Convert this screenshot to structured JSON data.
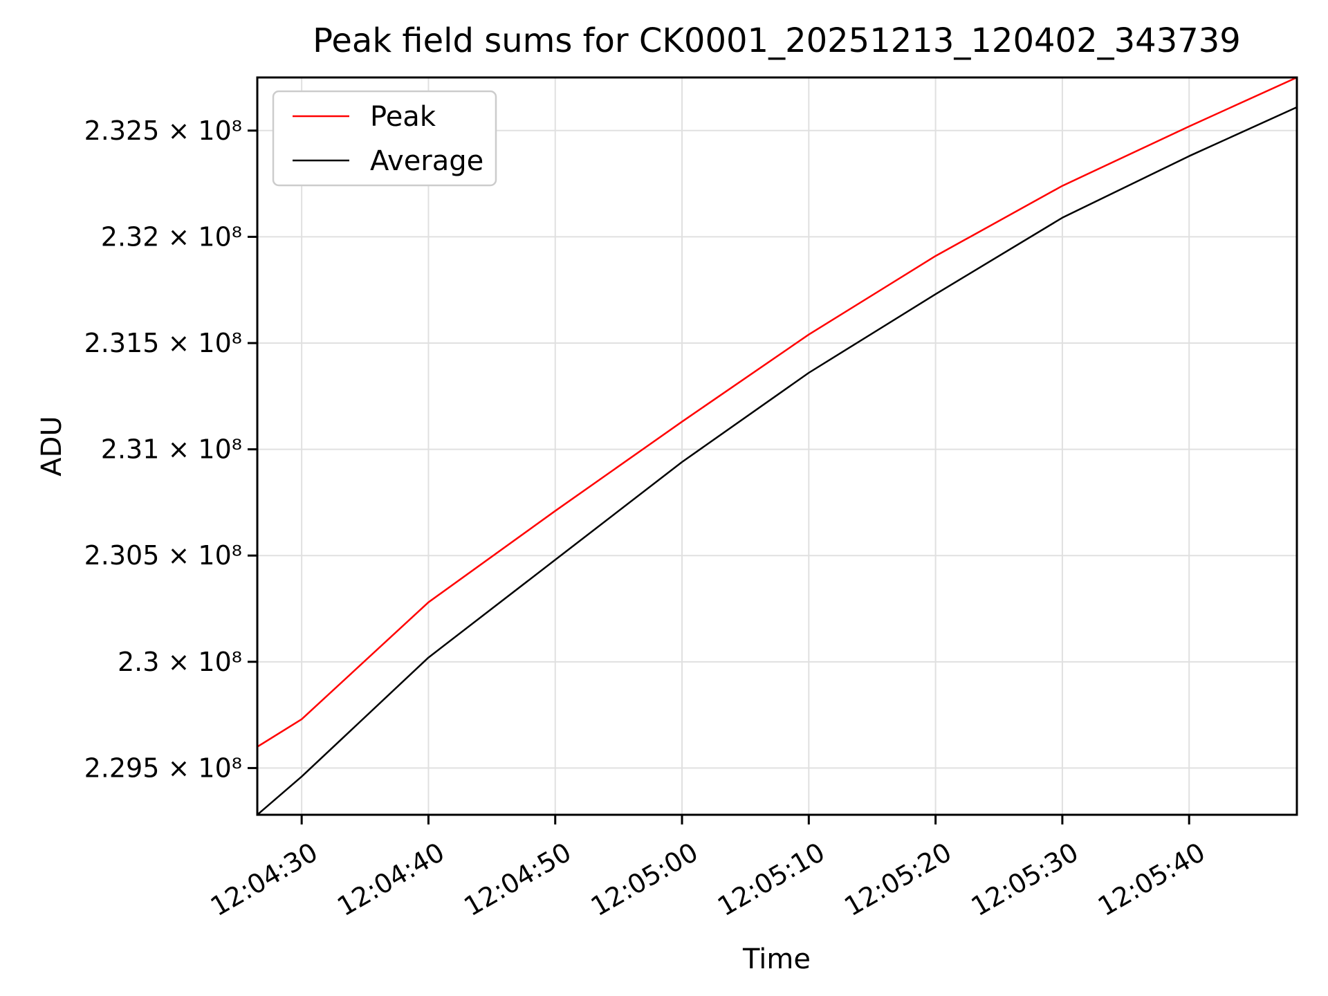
{
  "chart_data": {
    "type": "line",
    "title": "Peak field sums for CK0001_20251213_120402_343739",
    "xlabel": "Time",
    "ylabel": "ADU",
    "y_scale": "log",
    "grid": true,
    "legend_position": "upper left",
    "xlim": [
      "12:04:26.5",
      "12:05:48.5"
    ],
    "ylim": [
      229280000,
      232750000
    ],
    "x_tick_labels": [
      "12:04:30",
      "12:04:40",
      "12:04:50",
      "12:05:00",
      "12:05:10",
      "12:05:20",
      "12:05:30",
      "12:05:40"
    ],
    "y_ticks": [
      {
        "value": 232500000,
        "label": "2.325 × 10⁸"
      },
      {
        "value": 232000000,
        "label": "2.32 × 10⁸"
      },
      {
        "value": 231500000,
        "label": "2.315 × 10⁸"
      },
      {
        "value": 231000000,
        "label": "2.31 × 10⁸"
      },
      {
        "value": 230500000,
        "label": "2.305 × 10⁸"
      },
      {
        "value": 230000000,
        "label": "2.3 × 10⁸"
      },
      {
        "value": 229500000,
        "label": "2.295 × 10⁸"
      }
    ],
    "x": [
      "12:04:26.5",
      "12:04:30",
      "12:04:40",
      "12:04:50",
      "12:05:00",
      "12:05:10",
      "12:05:20",
      "12:05:30",
      "12:05:40",
      "12:05:48.5"
    ],
    "series": [
      {
        "name": "Peak",
        "color": "#ff0000",
        "values": [
          229600000,
          229730000,
          230280000,
          230710000,
          231130000,
          231540000,
          231910000,
          232240000,
          232520000,
          232750000
        ]
      },
      {
        "name": "Average",
        "color": "#000000",
        "values": [
          229280000,
          229460000,
          230020000,
          230480000,
          230940000,
          231360000,
          231730000,
          232090000,
          232380000,
          232610000
        ]
      }
    ],
    "colors": {
      "grid": "#e0e0e0",
      "spine": "#000000",
      "legend_border": "#cccccc",
      "background": "#ffffff"
    }
  }
}
